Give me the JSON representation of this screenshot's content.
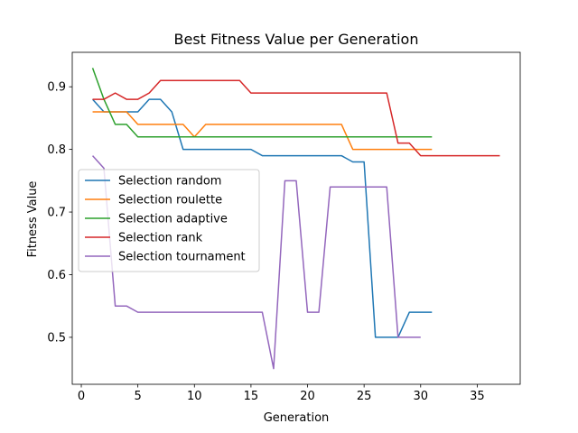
{
  "chart_data": {
    "type": "line",
    "title": "Best Fitness Value per Generation",
    "xlabel": "Generation",
    "ylabel": "Fitness Value",
    "xlim": [
      -0.8,
      38.8
    ],
    "ylim": [
      0.425,
      0.955
    ],
    "xticks": [
      0,
      5,
      10,
      15,
      20,
      25,
      30,
      35
    ],
    "yticks": [
      0.5,
      0.6,
      0.7,
      0.8,
      0.9
    ],
    "grid": false,
    "legend_position": "center-left",
    "series": [
      {
        "name": "Selection random",
        "color": "#1f77b4",
        "x": [
          1,
          2,
          3,
          4,
          5,
          6,
          7,
          8,
          9,
          10,
          11,
          12,
          13,
          14,
          15,
          16,
          17,
          18,
          19,
          20,
          21,
          22,
          23,
          24,
          25,
          26,
          27,
          28,
          29,
          30,
          31
        ],
        "y": [
          0.88,
          0.86,
          0.86,
          0.86,
          0.86,
          0.88,
          0.88,
          0.86,
          0.8,
          0.8,
          0.8,
          0.8,
          0.8,
          0.8,
          0.8,
          0.79,
          0.79,
          0.79,
          0.79,
          0.79,
          0.79,
          0.79,
          0.79,
          0.78,
          0.78,
          0.5,
          0.5,
          0.5,
          0.54,
          0.54,
          0.54
        ]
      },
      {
        "name": "Selection roulette",
        "color": "#ff7f0e",
        "x": [
          1,
          2,
          3,
          4,
          5,
          6,
          7,
          8,
          9,
          10,
          11,
          12,
          13,
          14,
          15,
          16,
          17,
          18,
          19,
          20,
          21,
          22,
          23,
          24,
          25,
          26,
          27,
          28,
          29,
          30,
          31
        ],
        "y": [
          0.86,
          0.86,
          0.86,
          0.86,
          0.84,
          0.84,
          0.84,
          0.84,
          0.84,
          0.82,
          0.84,
          0.84,
          0.84,
          0.84,
          0.84,
          0.84,
          0.84,
          0.84,
          0.84,
          0.84,
          0.84,
          0.84,
          0.84,
          0.8,
          0.8,
          0.8,
          0.8,
          0.8,
          0.8,
          0.8,
          0.8
        ]
      },
      {
        "name": "Selection adaptive",
        "color": "#2ca02c",
        "x": [
          1,
          2,
          3,
          4,
          5,
          6,
          7,
          8,
          9,
          10,
          11,
          12,
          13,
          14,
          15,
          16,
          17,
          18,
          19,
          20,
          21,
          22,
          23,
          24,
          25,
          26,
          27,
          28,
          29,
          30,
          31
        ],
        "y": [
          0.93,
          0.88,
          0.84,
          0.84,
          0.82,
          0.82,
          0.82,
          0.82,
          0.82,
          0.82,
          0.82,
          0.82,
          0.82,
          0.82,
          0.82,
          0.82,
          0.82,
          0.82,
          0.82,
          0.82,
          0.82,
          0.82,
          0.82,
          0.82,
          0.82,
          0.82,
          0.82,
          0.82,
          0.82,
          0.82,
          0.82
        ]
      },
      {
        "name": "Selection rank",
        "color": "#d62728",
        "x": [
          1,
          2,
          3,
          4,
          5,
          6,
          7,
          8,
          9,
          10,
          11,
          12,
          13,
          14,
          15,
          16,
          17,
          18,
          19,
          20,
          21,
          22,
          23,
          24,
          25,
          26,
          27,
          28,
          29,
          30,
          31,
          32,
          33,
          34,
          35,
          36,
          37
        ],
        "y": [
          0.88,
          0.88,
          0.89,
          0.88,
          0.88,
          0.89,
          0.91,
          0.91,
          0.91,
          0.91,
          0.91,
          0.91,
          0.91,
          0.91,
          0.89,
          0.89,
          0.89,
          0.89,
          0.89,
          0.89,
          0.89,
          0.89,
          0.89,
          0.89,
          0.89,
          0.89,
          0.89,
          0.81,
          0.81,
          0.79,
          0.79,
          0.79,
          0.79,
          0.79,
          0.79,
          0.79,
          0.79
        ]
      },
      {
        "name": "Selection tournament",
        "color": "#9467bd",
        "x": [
          1,
          2,
          3,
          4,
          5,
          6,
          7,
          8,
          9,
          10,
          11,
          12,
          13,
          14,
          15,
          16,
          17,
          18,
          19,
          20,
          21,
          22,
          23,
          24,
          25,
          26,
          27,
          28,
          29,
          30
        ],
        "y": [
          0.79,
          0.77,
          0.55,
          0.55,
          0.54,
          0.54,
          0.54,
          0.54,
          0.54,
          0.54,
          0.54,
          0.54,
          0.54,
          0.54,
          0.54,
          0.54,
          0.45,
          0.75,
          0.75,
          0.54,
          0.54,
          0.74,
          0.74,
          0.74,
          0.74,
          0.74,
          0.74,
          0.5,
          0.5,
          0.5
        ]
      }
    ]
  }
}
